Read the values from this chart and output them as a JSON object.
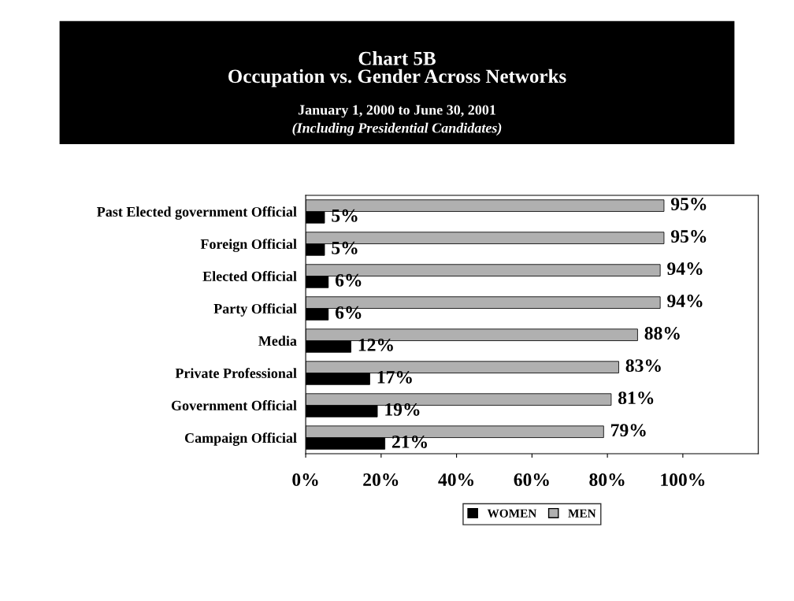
{
  "chart_data": {
    "type": "bar",
    "orientation": "horizontal",
    "title": "Chart 5B\nOccupation vs. Gender Across Networks",
    "subtitle": "January 1, 2000 to June 30, 2001",
    "annotations": [
      "(Including Presidential Candidates)"
    ],
    "categories": [
      "Past Elected government Official",
      "Foreign Official",
      "Elected Official",
      "Party Official",
      "Media",
      "Private Professional",
      "Government Official",
      "Campaign Official"
    ],
    "series": [
      {
        "name": "WOMEN",
        "color": "#000000",
        "values": [
          5,
          5,
          6,
          6,
          12,
          17,
          19,
          21
        ],
        "value_labels": [
          "5%",
          "5%",
          "6%",
          "6%",
          "12%",
          "17%",
          "19%",
          "21%"
        ]
      },
      {
        "name": "MEN",
        "color": "#b0b0b0",
        "values": [
          95,
          95,
          94,
          94,
          88,
          83,
          81,
          79
        ],
        "value_labels": [
          "95%",
          "95%",
          "94%",
          "94%",
          "88%",
          "83%",
          "81%",
          "79%"
        ]
      }
    ],
    "xlim": [
      0,
      120
    ],
    "xticks": [
      {
        "value": 0,
        "label": "0%"
      },
      {
        "value": 20,
        "label": "20%"
      },
      {
        "value": 40,
        "label": "40%"
      },
      {
        "value": 60,
        "label": "60%"
      },
      {
        "value": 80,
        "label": "80%"
      },
      {
        "value": 100,
        "label": "100%"
      }
    ],
    "grid": false,
    "legend": "bottom"
  }
}
